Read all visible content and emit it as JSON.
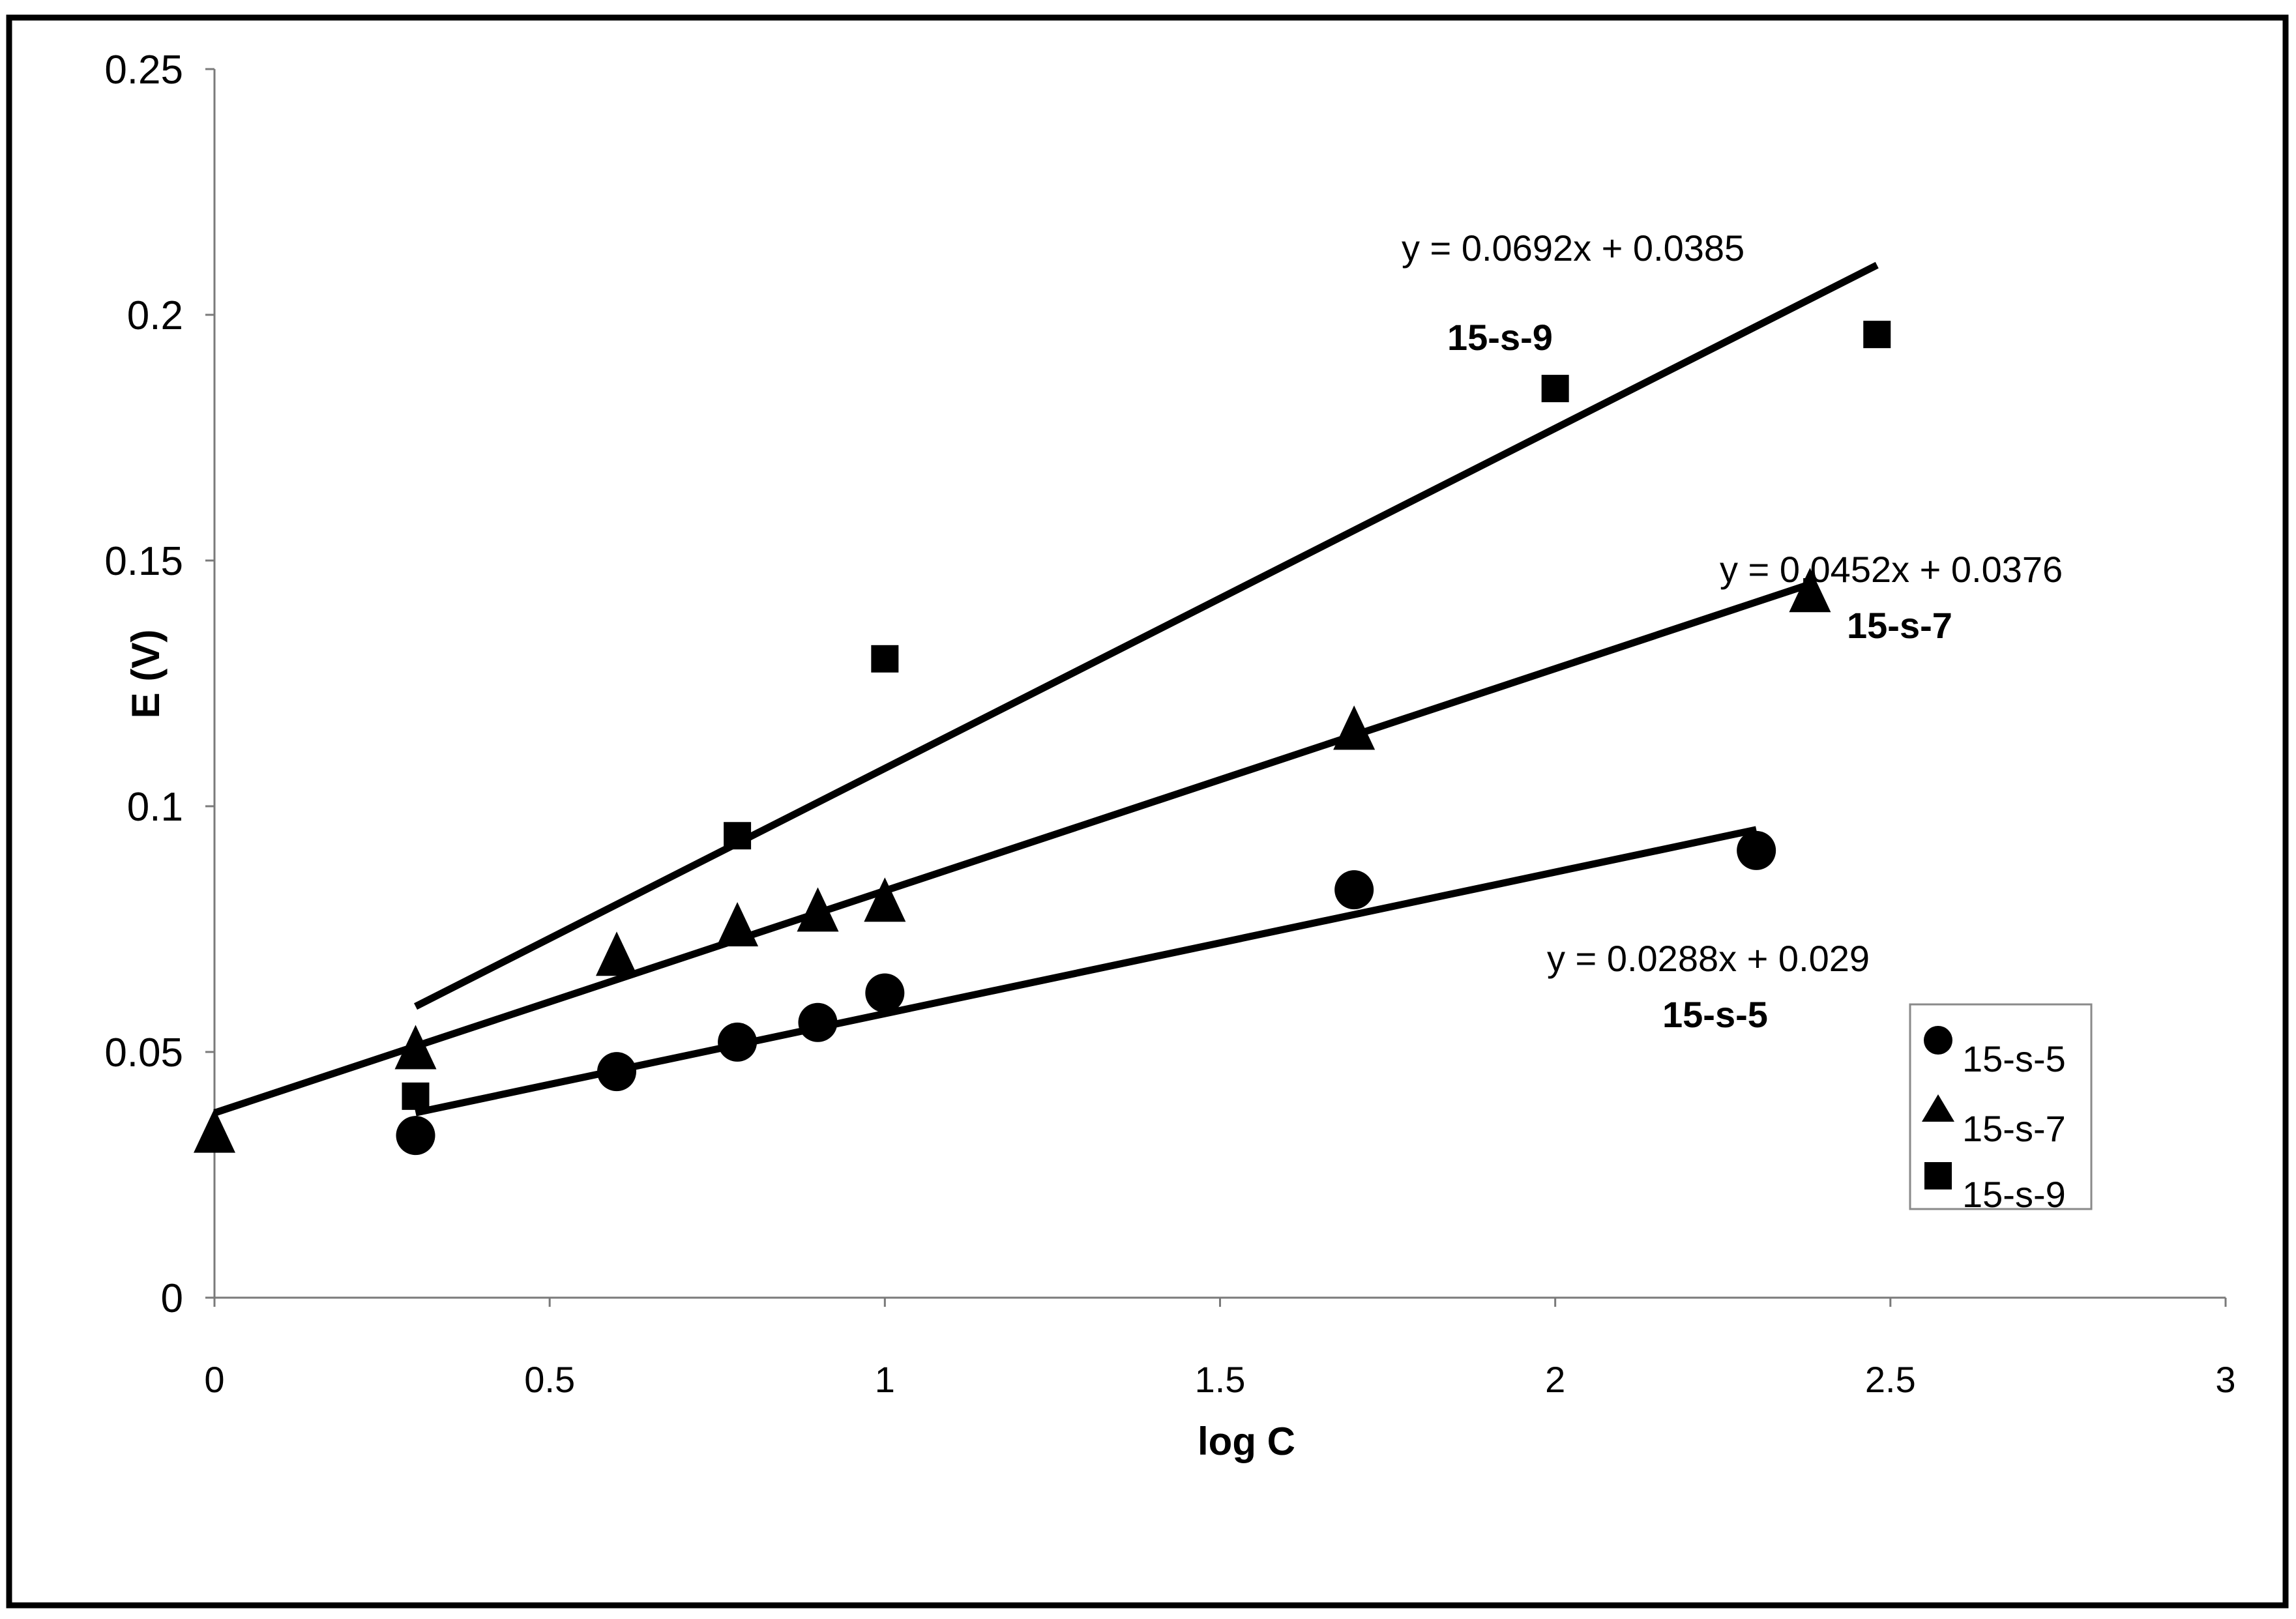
{
  "chart_data": {
    "type": "scatter",
    "title": "",
    "xlabel": "log C",
    "ylabel": "E (V)",
    "xlim": [
      0,
      3
    ],
    "ylim": [
      0,
      0.25
    ],
    "xticks": [
      0,
      0.5,
      1,
      1.5,
      2,
      2.5,
      3
    ],
    "xtick_labels": [
      "0",
      "0.5",
      "1",
      "1.5",
      "2",
      "2.5",
      "3"
    ],
    "yticks": [
      0,
      0.05,
      0.1,
      0.15,
      0.2,
      0.25
    ],
    "ytick_labels": [
      "0",
      "0.05",
      "0.1",
      "0.15",
      "0.2",
      "0.25"
    ],
    "grid": false,
    "legend_position": "right",
    "series": [
      {
        "name": "15-s-5",
        "marker": "circle",
        "x": [
          0.3,
          0.6,
          0.78,
          0.9,
          1.0,
          1.7,
          2.3
        ],
        "y": [
          0.033,
          0.046,
          0.052,
          0.056,
          0.062,
          0.083,
          0.091
        ],
        "trendline": {
          "slope": 0.0288,
          "intercept": 0.029,
          "x_start": 0.3,
          "x_end": 2.3
        },
        "equation": "y = 0.0288x + 0.029",
        "annotation_label": "15-s-5"
      },
      {
        "name": "15-s-7",
        "marker": "triangle",
        "x": [
          0,
          0.3,
          0.6,
          0.78,
          0.9,
          1.0,
          1.7,
          2.38
        ],
        "y": [
          0.034,
          0.051,
          0.07,
          0.076,
          0.079,
          0.081,
          0.116,
          0.144
        ],
        "trendline": {
          "slope": 0.0452,
          "intercept": 0.0376,
          "x_start": 0.0,
          "x_end": 2.38
        },
        "equation": "y = 0.0452x + 0.0376",
        "annotation_label": "15-s-7"
      },
      {
        "name": "15-s-9",
        "marker": "square",
        "x": [
          0.3,
          0.78,
          1.0,
          2.0,
          2.48
        ],
        "y": [
          0.041,
          0.094,
          0.13,
          0.185,
          0.196
        ],
        "trendline": {
          "slope": 0.0692,
          "intercept": 0.0385,
          "x_start": 0.3,
          "x_end": 2.48
        },
        "equation": "y = 0.0692x + 0.0385",
        "annotation_label": "15-s-9"
      }
    ]
  }
}
